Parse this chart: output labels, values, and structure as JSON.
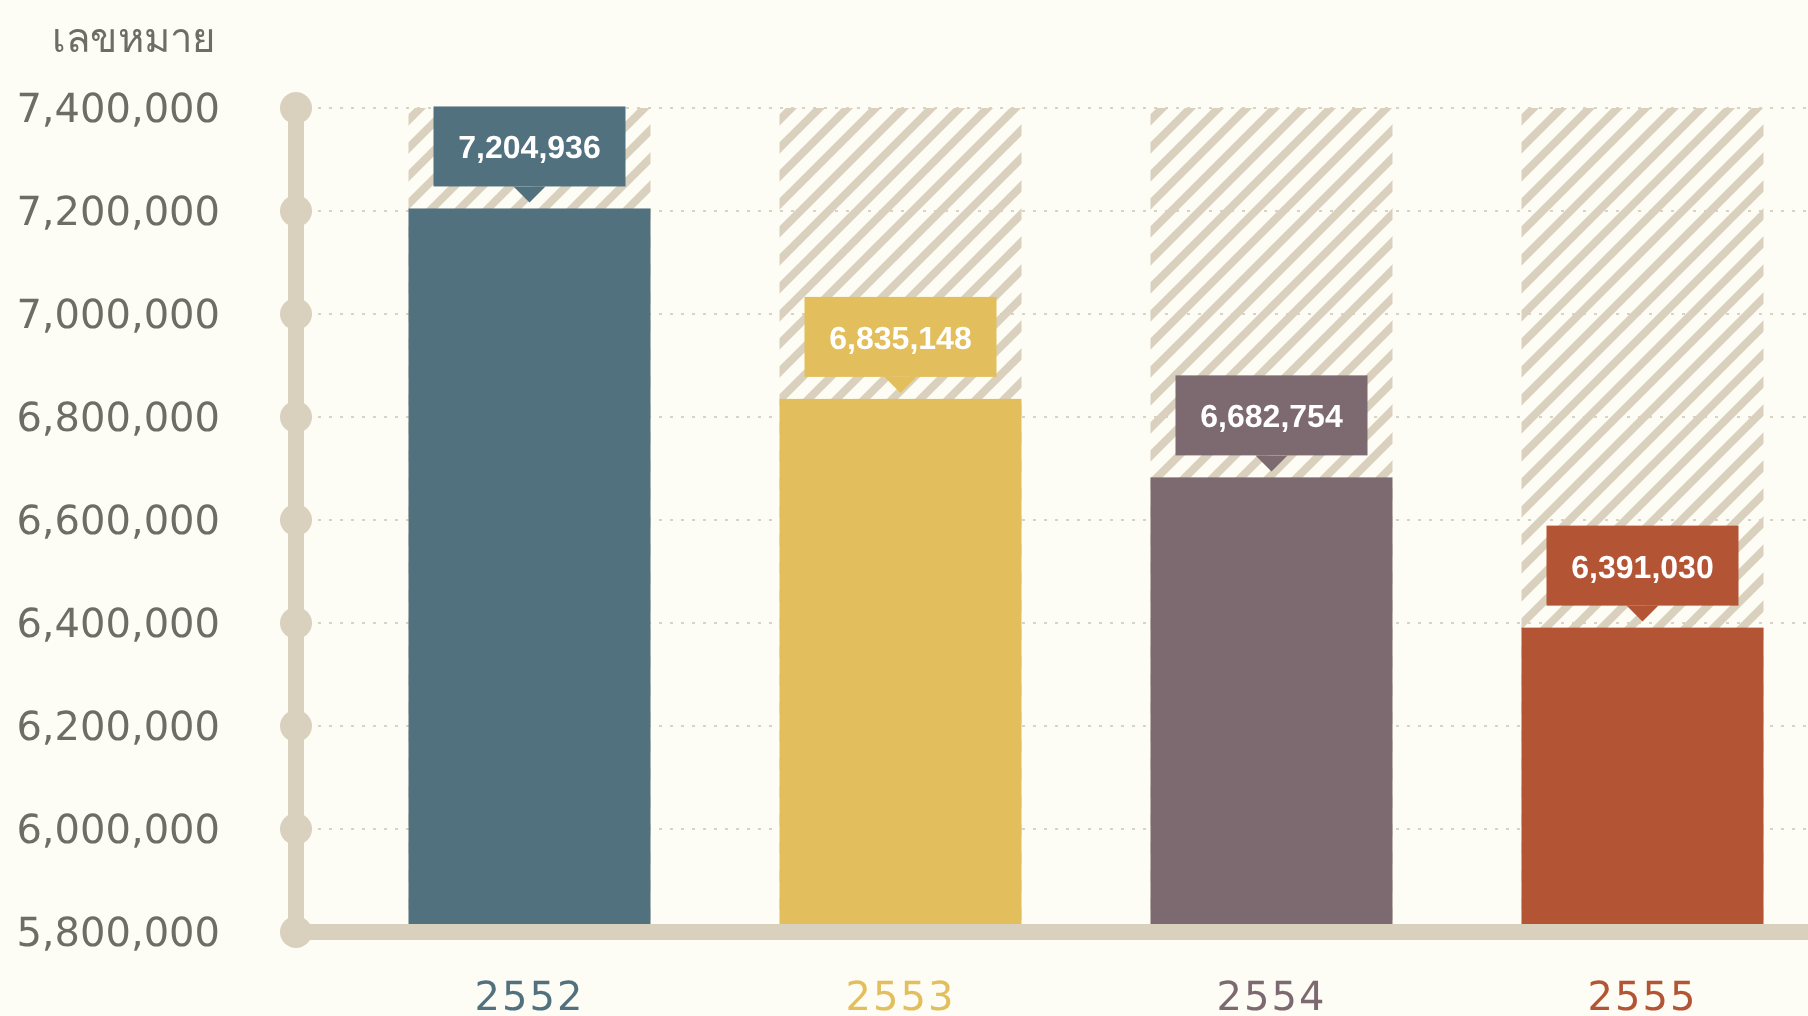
{
  "chart_data": {
    "type": "bar",
    "ylabel": "เลขหมาย",
    "categories": [
      "2552",
      "2553",
      "2554",
      "2555"
    ],
    "values": [
      7204936,
      6835148,
      6682754,
      6391030
    ],
    "colors": [
      "#52717f",
      "#e2bf5c",
      "#7d6a70",
      "#b35535"
    ],
    "ylim": [
      5800000,
      7400000
    ],
    "yticks": [
      {
        "value": 5800000,
        "label": "5,800,000"
      },
      {
        "value": 6000000,
        "label": "6,000,000"
      },
      {
        "value": 6200000,
        "label": "6,200,000"
      },
      {
        "value": 6400000,
        "label": "6,400,000"
      },
      {
        "value": 6600000,
        "label": "6,600,000"
      },
      {
        "value": 6800000,
        "label": "6,800,000"
      },
      {
        "value": 7000000,
        "label": "7,000,000"
      },
      {
        "value": 7200000,
        "label": "7,200,000"
      },
      {
        "value": 7400000,
        "label": "7,400,000"
      }
    ],
    "value_labels": [
      "7,204,936",
      "6,835,148",
      "6,682,754",
      "6,391,030"
    ],
    "grid": "y"
  }
}
